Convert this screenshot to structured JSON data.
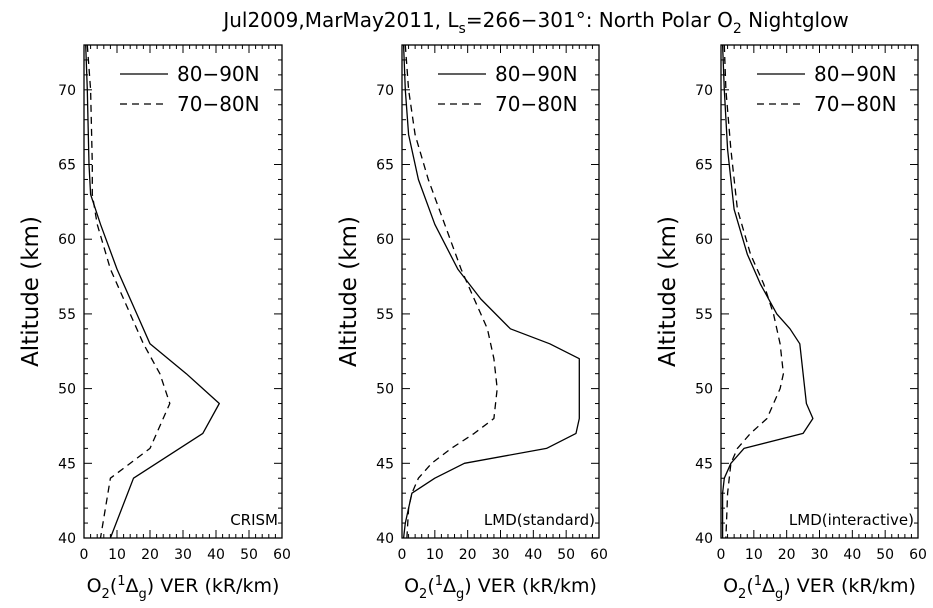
{
  "title": {
    "pre": "Jul2009,MarMay2011, L",
    "sub": "s",
    "post": "=266−301°: North Polar O",
    "sub2": "2",
    "tail": " Nightglow"
  },
  "axes": {
    "ylabel": "Altitude (km)",
    "xlabel": {
      "pre": "O",
      "sub1": "2",
      "paren_open": "(",
      "sup": "1",
      "delta": "Δ",
      "sub2": "g",
      "post": ") VER (kR/km)"
    }
  },
  "legend": {
    "solid": "80−90N",
    "dashed": "70−80N"
  },
  "colors": {
    "line": "#000000",
    "background": "#ffffff"
  },
  "chart_data": [
    {
      "type": "line",
      "panel_label": "CRISM",
      "xlim": [
        0,
        60
      ],
      "ylim": [
        40,
        73
      ],
      "x_ticks": [
        "0",
        "10",
        "20",
        "30",
        "40",
        "50",
        "60"
      ],
      "y_ticks": [
        "40",
        "45",
        "50",
        "55",
        "60",
        "65",
        "70"
      ],
      "series": [
        {
          "name": "80−90N",
          "style": "solid",
          "points": [
            [
              0.5,
              73
            ],
            [
              1,
              70
            ],
            [
              1.5,
              65
            ],
            [
              2,
              63
            ],
            [
              5,
              61
            ],
            [
              10,
              58
            ],
            [
              16,
              55
            ],
            [
              20,
              53
            ],
            [
              31,
              51
            ],
            [
              41,
              49
            ],
            [
              36,
              47
            ],
            [
              15,
              44
            ],
            [
              8,
              40
            ]
          ]
        },
        {
          "name": "70−80N",
          "style": "dashed",
          "points": [
            [
              1,
              73
            ],
            [
              2,
              70
            ],
            [
              2.5,
              65
            ],
            [
              2.5,
              63
            ],
            [
              4,
              61
            ],
            [
              8,
              58
            ],
            [
              14,
              55
            ],
            [
              18,
              53
            ],
            [
              23,
              51
            ],
            [
              26,
              49
            ],
            [
              20,
              46
            ],
            [
              8,
              44
            ],
            [
              5,
              40
            ]
          ]
        }
      ]
    },
    {
      "type": "line",
      "panel_label": "LMD(standard)",
      "xlim": [
        0,
        60
      ],
      "ylim": [
        40,
        73
      ],
      "x_ticks": [
        "0",
        "10",
        "20",
        "30",
        "40",
        "50",
        "60"
      ],
      "y_ticks": [
        "40",
        "45",
        "50",
        "55",
        "60",
        "65",
        "70"
      ],
      "series": [
        {
          "name": "80−90N",
          "style": "solid",
          "points": [
            [
              0.5,
              73
            ],
            [
              1,
              70
            ],
            [
              2,
              67
            ],
            [
              5,
              64
            ],
            [
              10,
              61
            ],
            [
              17,
              58
            ],
            [
              24,
              56
            ],
            [
              33,
              54
            ],
            [
              45,
              53
            ],
            [
              54,
              52
            ],
            [
              54,
              50
            ],
            [
              54,
              48
            ],
            [
              53,
              47
            ],
            [
              44,
              46
            ],
            [
              19,
              45
            ],
            [
              10,
              44
            ],
            [
              3,
              43
            ],
            [
              1,
              41
            ],
            [
              0.5,
              40
            ]
          ]
        },
        {
          "name": "70−80N",
          "style": "dashed",
          "points": [
            [
              1,
              73
            ],
            [
              2,
              70
            ],
            [
              4,
              67
            ],
            [
              8,
              64
            ],
            [
              13,
              61
            ],
            [
              18,
              58
            ],
            [
              22,
              56
            ],
            [
              26,
              54
            ],
            [
              28,
              52
            ],
            [
              29,
              50
            ],
            [
              28,
              48
            ],
            [
              22,
              47
            ],
            [
              15,
              46
            ],
            [
              9,
              45
            ],
            [
              5,
              44
            ],
            [
              3,
              43
            ],
            [
              2,
              42
            ],
            [
              1.5,
              40
            ]
          ]
        }
      ]
    },
    {
      "type": "line",
      "panel_label": "LMD(interactive)",
      "xlim": [
        0,
        60
      ],
      "ylim": [
        40,
        73
      ],
      "x_ticks": [
        "0",
        "10",
        "20",
        "30",
        "40",
        "50",
        "60"
      ],
      "y_ticks": [
        "40",
        "45",
        "50",
        "55",
        "60",
        "65",
        "70"
      ],
      "series": [
        {
          "name": "80−90N",
          "style": "solid",
          "points": [
            [
              0.5,
              73
            ],
            [
              1,
              70
            ],
            [
              2,
              66
            ],
            [
              4,
              62
            ],
            [
              8,
              59
            ],
            [
              12,
              57
            ],
            [
              17,
              55
            ],
            [
              21,
              54
            ],
            [
              24,
              53
            ],
            [
              25,
              51
            ],
            [
              26,
              49
            ],
            [
              28,
              48
            ],
            [
              25,
              47
            ],
            [
              7,
              46
            ],
            [
              3,
              45
            ],
            [
              1,
              44
            ],
            [
              0.5,
              43
            ],
            [
              0.5,
              40
            ]
          ]
        },
        {
          "name": "70−80N",
          "style": "dashed",
          "points": [
            [
              1,
              73
            ],
            [
              1.5,
              70
            ],
            [
              3,
              66
            ],
            [
              5,
              62
            ],
            [
              9,
              59
            ],
            [
              13,
              57
            ],
            [
              16,
              55
            ],
            [
              18,
              53
            ],
            [
              19,
              51
            ],
            [
              18,
              50
            ],
            [
              14,
              48
            ],
            [
              9,
              47
            ],
            [
              5,
              46
            ],
            [
              3,
              45
            ],
            [
              2,
              43
            ],
            [
              1.5,
              40
            ]
          ]
        }
      ]
    }
  ]
}
